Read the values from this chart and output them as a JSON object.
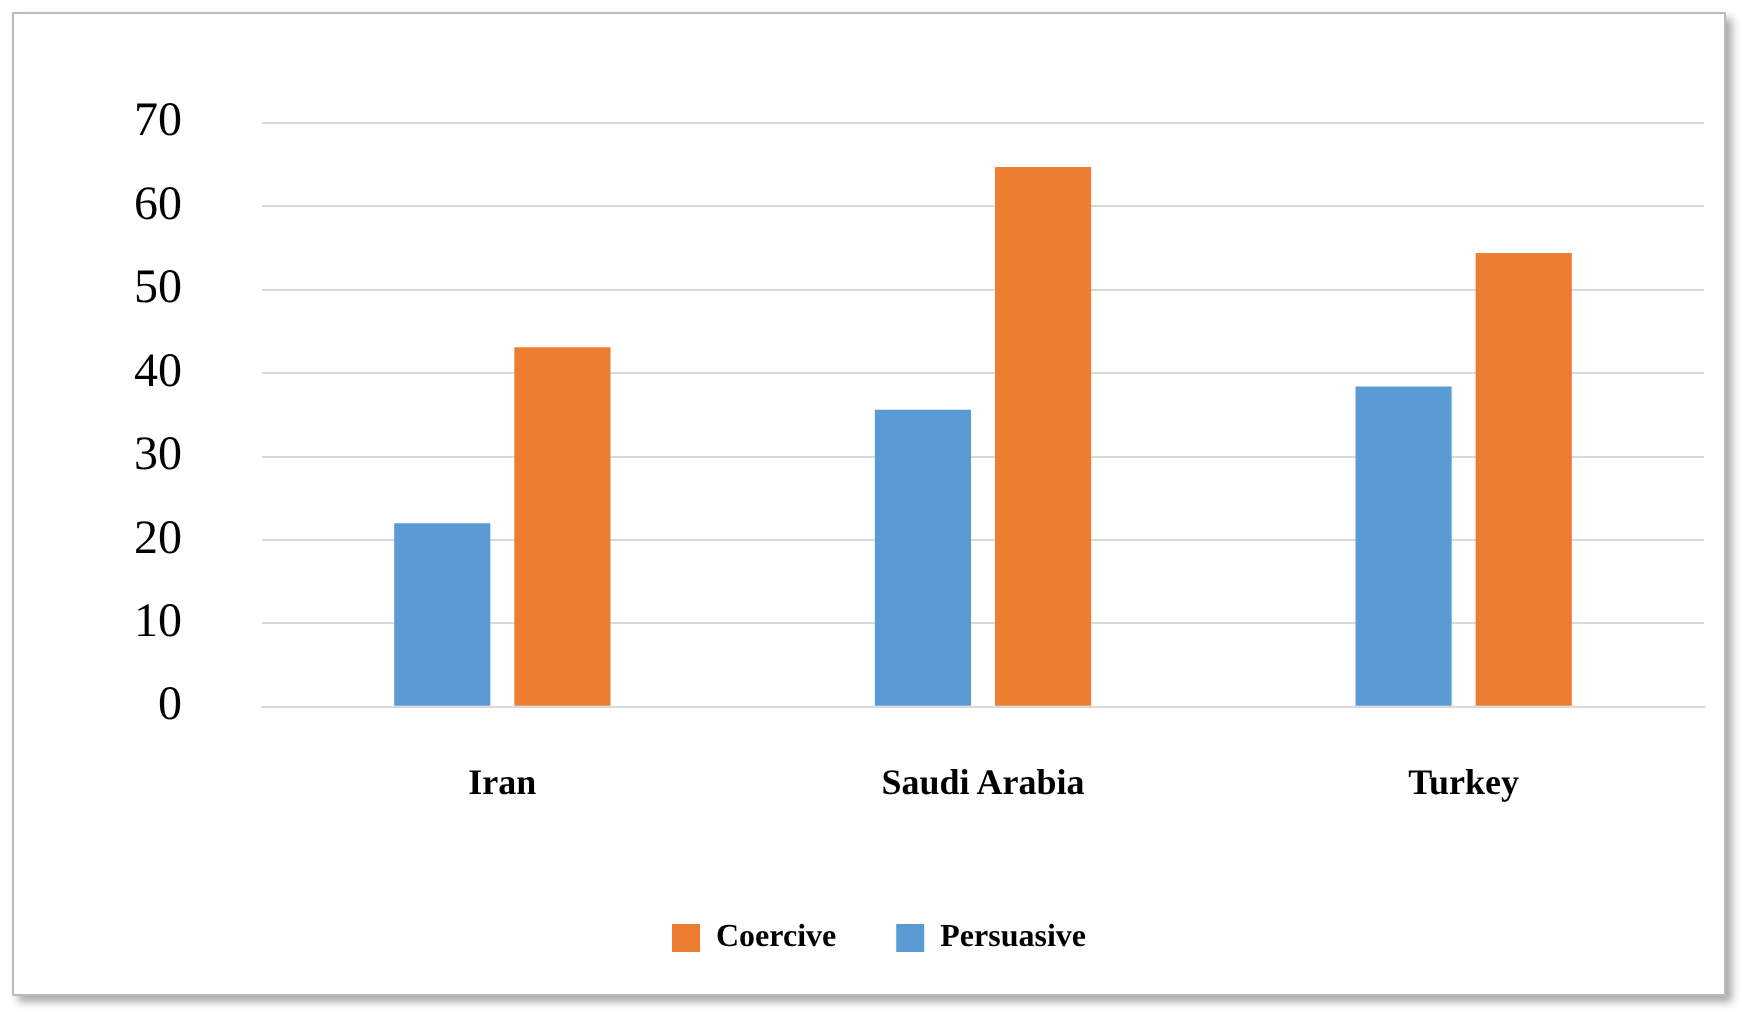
{
  "chart_data": {
    "type": "bar",
    "categories": [
      "Iran",
      "Saudi Arabia",
      "Turkey"
    ],
    "series": [
      {
        "name": "Persuasive",
        "color": "#5b9bd5",
        "values": [
          22,
          35.6,
          38.4
        ]
      },
      {
        "name": "Coercive",
        "color": "#ed7d31",
        "values": [
          43.1,
          64.7,
          54.4
        ]
      }
    ],
    "ylim": [
      0,
      70
    ],
    "yticks": [
      0,
      10,
      20,
      30,
      40,
      50,
      60,
      70
    ],
    "grid": "y",
    "legend": "bottom"
  }
}
